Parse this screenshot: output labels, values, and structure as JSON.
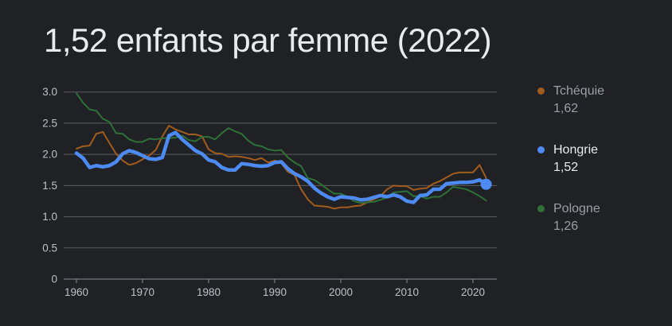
{
  "colors": {
    "background": "#202124",
    "title_text": "#e8eaed",
    "grid_line": "#5b5e62",
    "axis_line": "#8a8f94",
    "tick_label": "#bdc1c6",
    "legend_muted_text": "#9aa0a6",
    "legend_selected_text": "#e8eaed",
    "series_tchequie": "#a05c1e",
    "series_hongrie": "#4d8af2",
    "series_pologne": "#2e7038"
  },
  "header": {
    "title": "1,52 enfants par femme (2022)"
  },
  "legend": {
    "items": [
      {
        "label": "Tchéquie",
        "value": "1,62",
        "color": "#a05c1e",
        "selected": false
      },
      {
        "label": "Hongrie",
        "value": "1,52",
        "color": "#4d8af2",
        "selected": true
      },
      {
        "label": "Pologne",
        "value": "1,26",
        "color": "#2e7038",
        "selected": false
      }
    ]
  },
  "chart_data": {
    "type": "line",
    "title": "1,52 enfants par femme (2022)",
    "xlabel": "",
    "ylabel": "",
    "ylim": [
      0,
      3.0
    ],
    "yticks": [
      0,
      0.5,
      1.0,
      1.5,
      2.0,
      2.5,
      3.0
    ],
    "ytick_labels": [
      "0",
      "0.5",
      "1.0",
      "1.5",
      "2.0",
      "2.5",
      "3.0"
    ],
    "xticks": [
      1960,
      1970,
      1980,
      1990,
      2000,
      2010,
      2020
    ],
    "grid": true,
    "legend_position": "right",
    "years": [
      1960,
      1961,
      1962,
      1963,
      1964,
      1965,
      1966,
      1967,
      1968,
      1969,
      1970,
      1971,
      1972,
      1973,
      1974,
      1975,
      1976,
      1977,
      1978,
      1979,
      1980,
      1981,
      1982,
      1983,
      1984,
      1985,
      1986,
      1987,
      1988,
      1989,
      1990,
      1991,
      1992,
      1993,
      1994,
      1995,
      1996,
      1997,
      1998,
      1999,
      2000,
      2001,
      2002,
      2003,
      2004,
      2005,
      2006,
      2007,
      2008,
      2009,
      2010,
      2011,
      2012,
      2013,
      2014,
      2015,
      2016,
      2017,
      2018,
      2019,
      2020,
      2021,
      2022
    ],
    "series": [
      {
        "name": "Tchéquie",
        "color": "#a05c1e",
        "width": 2,
        "selected": false,
        "values": [
          2.09,
          2.13,
          2.14,
          2.33,
          2.36,
          2.18,
          2.01,
          1.9,
          1.83,
          1.86,
          1.92,
          1.98,
          2.07,
          2.29,
          2.46,
          2.4,
          2.36,
          2.32,
          2.32,
          2.29,
          2.08,
          2.02,
          2.01,
          1.96,
          1.97,
          1.96,
          1.94,
          1.91,
          1.94,
          1.87,
          1.9,
          1.86,
          1.72,
          1.67,
          1.44,
          1.28,
          1.18,
          1.17,
          1.16,
          1.13,
          1.15,
          1.15,
          1.17,
          1.18,
          1.23,
          1.28,
          1.33,
          1.44,
          1.5,
          1.49,
          1.49,
          1.43,
          1.45,
          1.46,
          1.53,
          1.57,
          1.63,
          1.69,
          1.71,
          1.71,
          1.71,
          1.83,
          1.62
        ]
      },
      {
        "name": "Hongrie",
        "color": "#4d8af2",
        "width": 4.5,
        "selected": true,
        "values": [
          2.02,
          1.94,
          1.79,
          1.82,
          1.8,
          1.82,
          1.88,
          2.01,
          2.06,
          2.03,
          1.98,
          1.93,
          1.92,
          1.95,
          2.3,
          2.35,
          2.24,
          2.15,
          2.06,
          2.01,
          1.91,
          1.88,
          1.79,
          1.75,
          1.75,
          1.85,
          1.84,
          1.82,
          1.81,
          1.82,
          1.87,
          1.88,
          1.77,
          1.69,
          1.64,
          1.57,
          1.46,
          1.38,
          1.32,
          1.28,
          1.32,
          1.31,
          1.3,
          1.27,
          1.28,
          1.31,
          1.34,
          1.32,
          1.35,
          1.32,
          1.25,
          1.23,
          1.34,
          1.35,
          1.44,
          1.44,
          1.53,
          1.54,
          1.55,
          1.55,
          1.56,
          1.59,
          1.52
        ]
      },
      {
        "name": "Pologne",
        "color": "#2e7038",
        "width": 2,
        "selected": false,
        "values": [
          2.98,
          2.83,
          2.72,
          2.7,
          2.57,
          2.52,
          2.34,
          2.33,
          2.24,
          2.2,
          2.2,
          2.25,
          2.24,
          2.26,
          2.26,
          2.27,
          2.3,
          2.23,
          2.21,
          2.28,
          2.28,
          2.24,
          2.34,
          2.42,
          2.37,
          2.33,
          2.22,
          2.15,
          2.13,
          2.08,
          2.06,
          2.07,
          1.95,
          1.87,
          1.81,
          1.62,
          1.59,
          1.52,
          1.44,
          1.37,
          1.37,
          1.32,
          1.25,
          1.22,
          1.23,
          1.24,
          1.27,
          1.31,
          1.39,
          1.4,
          1.41,
          1.33,
          1.33,
          1.29,
          1.32,
          1.32,
          1.39,
          1.48,
          1.46,
          1.44,
          1.39,
          1.33,
          1.26
        ]
      }
    ],
    "end_marker": {
      "series": "Hongrie",
      "year": 2022,
      "value": 1.52
    }
  }
}
